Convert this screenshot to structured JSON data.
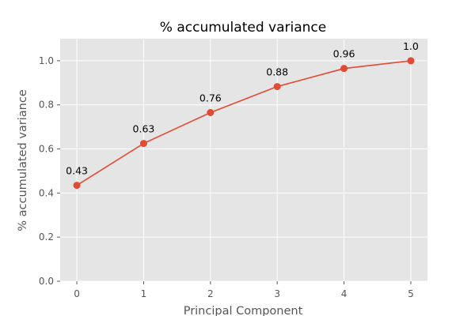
{
  "chart_data": {
    "type": "line",
    "title": "% accumulated variance",
    "xlabel": "Principal Component",
    "ylabel": "% accumulated variance",
    "x": [
      0,
      1,
      2,
      3,
      4,
      5
    ],
    "values": [
      0.435,
      0.625,
      0.765,
      0.883,
      0.965,
      1.0
    ],
    "data_labels": [
      "0.43",
      "0.63",
      "0.76",
      "0.88",
      "0.96",
      "1.0"
    ],
    "x_ticks": [
      "0",
      "1",
      "2",
      "3",
      "4",
      "5"
    ],
    "y_ticks": [
      "0.0",
      "0.2",
      "0.4",
      "0.6",
      "0.8",
      "1.0"
    ],
    "xlim": [
      -0.25,
      5.25
    ],
    "ylim": [
      0,
      1.1
    ],
    "grid": true,
    "colors": {
      "line": "#e24a33",
      "plot_background": "#e5e5e5",
      "grid": "#ffffff"
    }
  }
}
